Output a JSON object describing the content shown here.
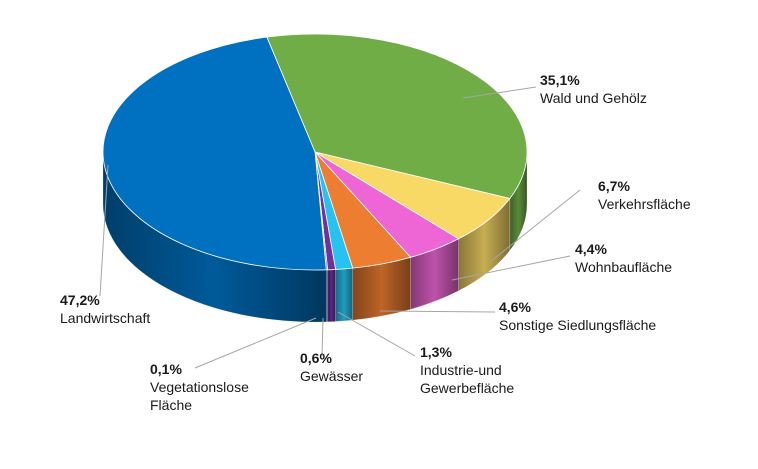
{
  "chart_data": {
    "type": "pie",
    "title": "",
    "slices": [
      {
        "label": "Wald und Gehölz",
        "value": 35.1,
        "value_text": "35,1%",
        "color": "#70AD47"
      },
      {
        "label": "Verkehrsfläche",
        "value": 6.7,
        "value_text": "6,7%",
        "color": "#F9D966"
      },
      {
        "label": "Wohnbaufläche",
        "value": 4.4,
        "value_text": "4,4%",
        "color": "#EE66D6"
      },
      {
        "label": "Sonstige Siedlungsfläche",
        "value": 4.6,
        "value_text": "4,6%",
        "color": "#ED7D31"
      },
      {
        "label": "Industrie-und\nGewerbefläche",
        "value": 1.3,
        "value_text": "1,3%",
        "color": "#27C3F0"
      },
      {
        "label": "Gewässer",
        "value": 0.6,
        "value_text": "0,6%",
        "color": "#7030A0"
      },
      {
        "label": "Vegetationslose\nFläche",
        "value": 0.1,
        "value_text": "0,1%",
        "color": "#2E4A8F"
      },
      {
        "label": "Landwirtschaft",
        "value": 47.2,
        "value_text": "47,2%",
        "color": "#0070C0"
      }
    ]
  }
}
